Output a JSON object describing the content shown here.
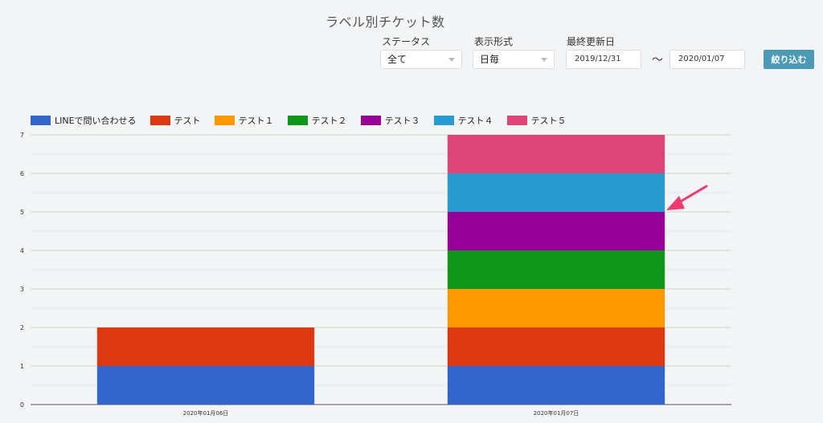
{
  "header": {
    "title": "ラベル別チケット数"
  },
  "filters": {
    "status": {
      "label": "ステータス",
      "value": "全て"
    },
    "format": {
      "label": "表示形式",
      "value": "日毎"
    },
    "date": {
      "label": "最終更新日",
      "start": "2019/12/31",
      "separator": "〜",
      "end": "2020/01/07"
    },
    "submit_label": "絞り込む"
  },
  "chart_data": {
    "type": "bar",
    "stacked": true,
    "categories": [
      "2020年01月06日",
      "2020年01月07日"
    ],
    "series": [
      {
        "name": "LINEで問い合わせる",
        "color": "#3366cc",
        "values": [
          1,
          1
        ]
      },
      {
        "name": "テスト",
        "color": "#dc3912",
        "values": [
          1,
          1
        ]
      },
      {
        "name": "テスト１",
        "color": "#ff9900",
        "values": [
          0,
          1
        ]
      },
      {
        "name": "テスト２",
        "color": "#109618",
        "values": [
          0,
          1
        ]
      },
      {
        "name": "テスト３",
        "color": "#990099",
        "values": [
          0,
          1
        ]
      },
      {
        "name": "テスト４",
        "color": "#2a9bd0",
        "values": [
          0,
          1
        ]
      },
      {
        "name": "テスト５",
        "color": "#dd4477",
        "values": [
          0,
          1
        ]
      }
    ],
    "ylim": [
      0,
      7
    ],
    "yticks": [
      0,
      1,
      2,
      3,
      4,
      5,
      6,
      7
    ],
    "grid": true,
    "legend": "top-left"
  },
  "annotation": {
    "type": "arrow",
    "color": "#f2386e"
  }
}
